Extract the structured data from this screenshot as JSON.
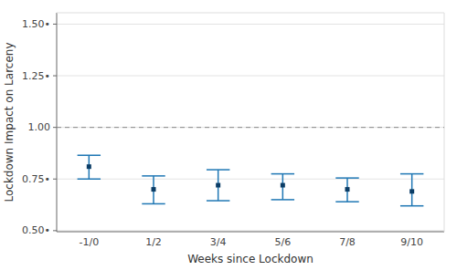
{
  "chart_data": {
    "type": "errorbar",
    "xlabel": "Weeks since Lockdown",
    "ylabel": "Lockdown Impact on Larceny",
    "categories": [
      "-1/0",
      "1/2",
      "3/4",
      "5/6",
      "7/8",
      "9/10"
    ],
    "values": [
      0.81,
      0.7,
      0.72,
      0.72,
      0.7,
      0.69
    ],
    "ci_lower": [
      0.75,
      0.63,
      0.645,
      0.65,
      0.64,
      0.62
    ],
    "ci_upper": [
      0.865,
      0.765,
      0.795,
      0.775,
      0.755,
      0.775
    ],
    "ylim": [
      0.495,
      1.555
    ],
    "yticks": [
      {
        "value": 0.5,
        "label": "0.50•"
      },
      {
        "value": 0.75,
        "label": "0.75•"
      },
      {
        "value": 1.0,
        "label": "1.00"
      },
      {
        "value": 1.25,
        "label": "1.25•"
      },
      {
        "value": 1.5,
        "label": "1.50•"
      }
    ],
    "hline": 1.0,
    "grid": true
  }
}
